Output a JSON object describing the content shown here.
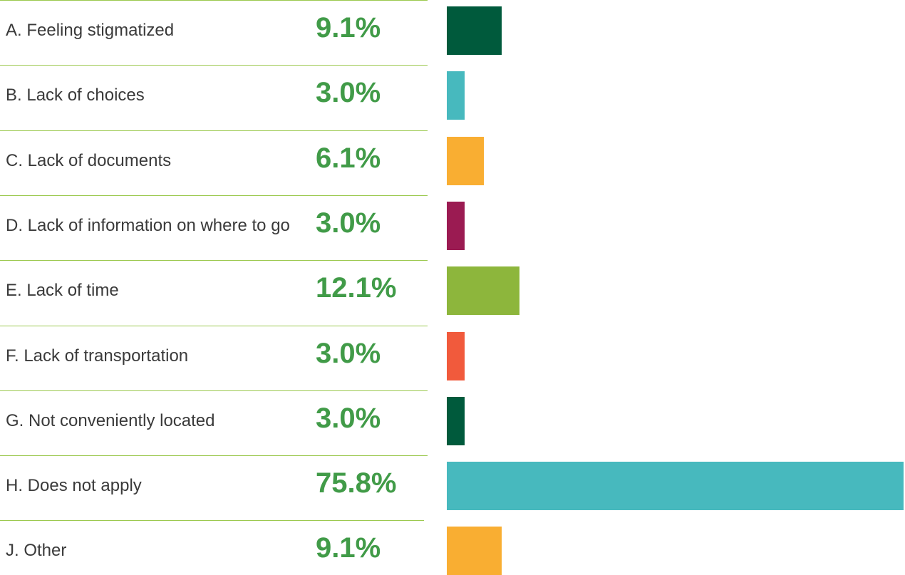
{
  "chart_data": {
    "type": "bar",
    "orientation": "horizontal",
    "categories": [
      "A. Feeling stigmatized",
      "B. Lack of choices",
      "C. Lack of documents",
      "D. Lack of information on where to go",
      "E. Lack of time",
      "F. Lack of transportation",
      "G. Not conveniently located",
      "H. Does not apply",
      "J. Other"
    ],
    "values": [
      9.1,
      3.0,
      6.1,
      3.0,
      12.1,
      3.0,
      3.0,
      75.8,
      9.1
    ],
    "value_labels": [
      "9.1%",
      "3.0%",
      "6.1%",
      "3.0%",
      "12.1%",
      "3.0%",
      "3.0%",
      "75.8%",
      "9.1%"
    ],
    "colors": [
      "#005a3c",
      "#47b9be",
      "#f9ae32",
      "#9b1b52",
      "#8db63c",
      "#f15a3c",
      "#005a3c",
      "#47b9be",
      "#f9ae32"
    ]
  }
}
